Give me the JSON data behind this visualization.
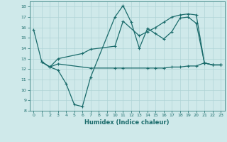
{
  "xlabel": "Humidex (Indice chaleur)",
  "xlim": [
    -0.5,
    23.5
  ],
  "ylim": [
    8,
    18.5
  ],
  "yticks": [
    8,
    9,
    10,
    11,
    12,
    13,
    14,
    15,
    16,
    17,
    18
  ],
  "xticks": [
    0,
    1,
    2,
    3,
    4,
    5,
    6,
    7,
    8,
    9,
    10,
    11,
    12,
    13,
    14,
    15,
    16,
    17,
    18,
    19,
    20,
    21,
    22,
    23
  ],
  "bg_color": "#cfe9ea",
  "grid_color": "#b0d4d6",
  "line_color": "#1a6b6b",
  "lines": [
    {
      "x": [
        0,
        1,
        2,
        3,
        4,
        5,
        6,
        7,
        10,
        11,
        12,
        13,
        14,
        15,
        16,
        17,
        18,
        19,
        20,
        21,
        22,
        23
      ],
      "y": [
        15.8,
        12.7,
        12.2,
        11.9,
        10.6,
        8.6,
        8.4,
        11.2,
        17.0,
        18.1,
        16.5,
        14.0,
        15.9,
        15.4,
        14.9,
        15.6,
        16.9,
        17.0,
        16.4,
        12.6,
        12.4,
        12.4
      ]
    },
    {
      "x": [
        1,
        2,
        3,
        6,
        7,
        10,
        11,
        13,
        14,
        15,
        16,
        17,
        18,
        19,
        20,
        21,
        22,
        23
      ],
      "y": [
        12.7,
        12.2,
        13.0,
        13.5,
        13.9,
        14.2,
        16.6,
        15.2,
        15.6,
        16.0,
        16.5,
        17.0,
        17.2,
        17.3,
        17.2,
        12.6,
        12.4,
        12.4
      ]
    },
    {
      "x": [
        1,
        2,
        3,
        7,
        10,
        11,
        14,
        15,
        16,
        17,
        18,
        19,
        20,
        21,
        22,
        23
      ],
      "y": [
        12.7,
        12.2,
        12.5,
        12.1,
        12.1,
        12.1,
        12.1,
        12.1,
        12.1,
        12.2,
        12.2,
        12.3,
        12.3,
        12.6,
        12.4,
        12.4
      ]
    }
  ]
}
